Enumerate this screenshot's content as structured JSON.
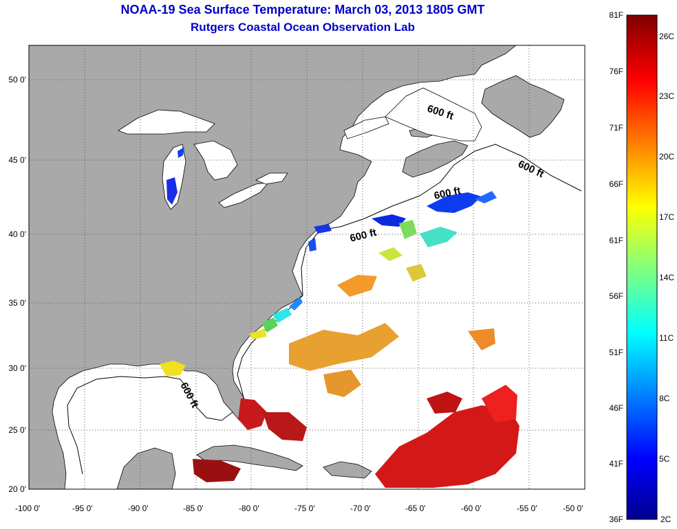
{
  "header": {
    "title": "NOAA-19 Sea Surface Temperature:  March 03, 2013 1805 GMT",
    "subtitle": "Rutgers Coastal Ocean Observation Lab"
  },
  "map": {
    "lon_range": [
      -100,
      -50
    ],
    "lat_range": [
      20,
      52.5
    ],
    "lon_ticks": [
      "-100 0'",
      "-95 0'",
      "-90 0'",
      "-85 0'",
      "-80 0'",
      "-75 0'",
      "-70 0'",
      "-65 0'",
      "-60 0'",
      "-55 0'",
      "-50 0'"
    ],
    "lat_ticks": [
      "20 0'",
      "25 0'",
      "30 0'",
      "35 0'",
      "40 0'",
      "45 0'",
      "50 0'"
    ],
    "grid": "dotted",
    "land_color": "#a9a9a9",
    "ocean_color": "#ffffff",
    "isobath_labels": [
      "600 ft",
      "600 ft",
      "600 ft",
      "600 ft",
      "600 ft"
    ]
  },
  "colorbar": {
    "fahrenheit_labels": [
      "81F",
      "76F",
      "71F",
      "66F",
      "61F",
      "56F",
      "51F",
      "46F",
      "41F",
      "36F"
    ],
    "celsius_labels": [
      "26C",
      "23C",
      "20C",
      "17C",
      "14C",
      "11C",
      "8C",
      "5C",
      "2C"
    ],
    "range_f": [
      36,
      81
    ],
    "colormap": "jet"
  }
}
